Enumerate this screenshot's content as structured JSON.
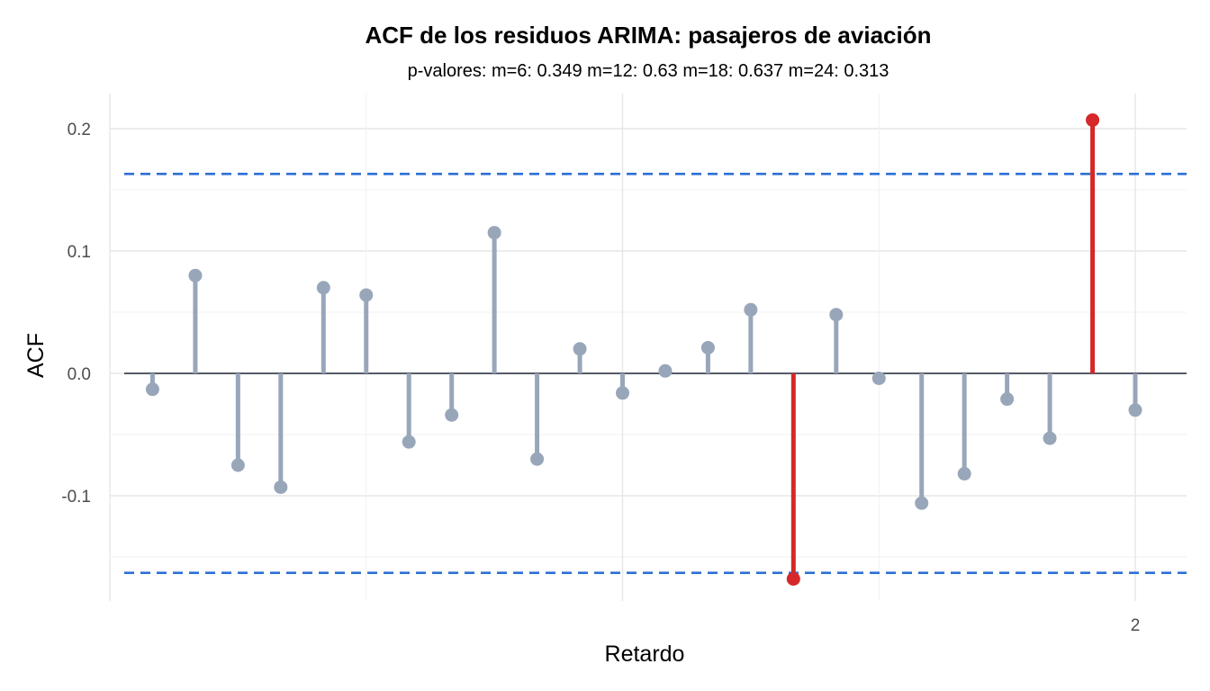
{
  "title": "ACF de los residuos ARIMA: pasajeros de aviación",
  "subtitle": "p-valores: m=6: 0.349  m=12: 0.63  m=18: 0.637  m=24: 0.313",
  "chart_data": {
    "type": "lollipop",
    "title": "ACF de los residuos ARIMA: pasajeros de aviación",
    "subtitle": "p-valores: m=6: 0.349  m=12: 0.63  m=18: 0.637  m=24: 0.313",
    "xlabel": "Retardo",
    "ylabel": "ACF",
    "xlim": [
      0,
      2.05
    ],
    "ylim": [
      -0.18,
      0.23
    ],
    "x_ticks": [
      {
        "value": 2,
        "label": "2"
      }
    ],
    "y_ticks": [
      {
        "value": 0.2,
        "label": "0.2"
      },
      {
        "value": 0.1,
        "label": "0.1"
      },
      {
        "value": 0.0,
        "label": "0.0"
      },
      {
        "value": -0.1,
        "label": "-0.1"
      }
    ],
    "confidence_bound": 0.163,
    "grid": true,
    "colors": {
      "normal": "#98A6BA",
      "significant": "#D62828",
      "bound": "#2F6FD6",
      "zero": "#1f2937"
    },
    "x": [
      0.0833,
      0.1667,
      0.25,
      0.3333,
      0.4167,
      0.5,
      0.5833,
      0.6667,
      0.75,
      0.8333,
      0.9167,
      1.0,
      1.0833,
      1.1667,
      1.25,
      1.3333,
      1.4167,
      1.5,
      1.5833,
      1.6667,
      1.75,
      1.8333,
      1.9167,
      2.0
    ],
    "values": [
      -0.013,
      0.08,
      -0.075,
      -0.093,
      0.07,
      0.064,
      -0.056,
      -0.034,
      0.115,
      -0.07,
      0.02,
      -0.016,
      0.002,
      0.021,
      0.052,
      -0.168,
      0.048,
      -0.004,
      -0.106,
      -0.082,
      -0.021,
      -0.053,
      0.207,
      -0.03
    ]
  }
}
